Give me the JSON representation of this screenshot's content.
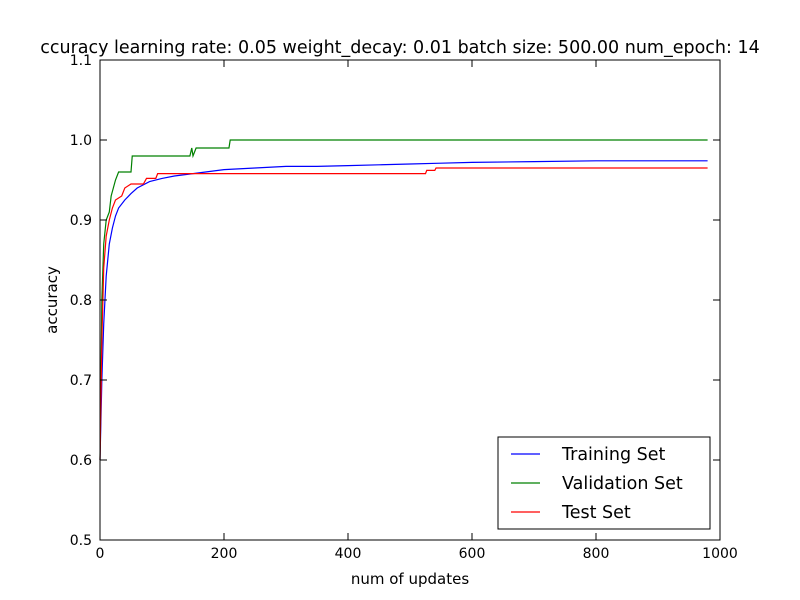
{
  "chart_data": {
    "type": "line",
    "title": "ccuracy learning rate: 0.05 weight_decay: 0.01 batch size: 500.00 num_epoch: 14",
    "xlabel": "num of updates",
    "ylabel": "accuracy",
    "xlim": [
      0,
      1000
    ],
    "ylim": [
      0.5,
      1.1
    ],
    "xticks": [
      "0",
      "200",
      "400",
      "600",
      "800",
      "1000"
    ],
    "xtick_values": [
      0,
      200,
      400,
      600,
      800,
      1000
    ],
    "yticks": [
      "0.5",
      "0.6",
      "0.7",
      "0.8",
      "0.9",
      "1.0",
      "1.1"
    ],
    "ytick_values": [
      0.5,
      0.6,
      0.7,
      0.8,
      0.9,
      1.0,
      1.1
    ],
    "grid": false,
    "legend_position": "bottom-right",
    "series": [
      {
        "name": "Training Set",
        "color": "#0000ff",
        "points": [
          [
            0,
            0.6
          ],
          [
            3,
            0.7
          ],
          [
            6,
            0.77
          ],
          [
            10,
            0.83
          ],
          [
            15,
            0.87
          ],
          [
            20,
            0.89
          ],
          [
            25,
            0.905
          ],
          [
            30,
            0.915
          ],
          [
            40,
            0.925
          ],
          [
            50,
            0.933
          ],
          [
            60,
            0.94
          ],
          [
            80,
            0.948
          ],
          [
            100,
            0.952
          ],
          [
            120,
            0.955
          ],
          [
            150,
            0.958
          ],
          [
            200,
            0.963
          ],
          [
            250,
            0.965
          ],
          [
            300,
            0.967
          ],
          [
            350,
            0.967
          ],
          [
            400,
            0.968
          ],
          [
            450,
            0.969
          ],
          [
            500,
            0.97
          ],
          [
            550,
            0.971
          ],
          [
            600,
            0.972
          ],
          [
            700,
            0.973
          ],
          [
            800,
            0.974
          ],
          [
            900,
            0.974
          ],
          [
            980,
            0.974
          ]
        ]
      },
      {
        "name": "Validation Set",
        "color": "#008000",
        "points": [
          [
            0,
            0.6
          ],
          [
            3,
            0.8
          ],
          [
            6,
            0.87
          ],
          [
            10,
            0.9
          ],
          [
            15,
            0.91
          ],
          [
            18,
            0.93
          ],
          [
            25,
            0.95
          ],
          [
            30,
            0.96
          ],
          [
            50,
            0.96
          ],
          [
            52,
            0.98
          ],
          [
            145,
            0.98
          ],
          [
            148,
            0.99
          ],
          [
            150,
            0.98
          ],
          [
            155,
            0.99
          ],
          [
            208,
            0.99
          ],
          [
            210,
            1.0
          ],
          [
            980,
            1.0
          ]
        ]
      },
      {
        "name": "Test Set",
        "color": "#ff0000",
        "points": [
          [
            0,
            0.6
          ],
          [
            3,
            0.75
          ],
          [
            6,
            0.84
          ],
          [
            10,
            0.88
          ],
          [
            15,
            0.9
          ],
          [
            20,
            0.915
          ],
          [
            25,
            0.925
          ],
          [
            35,
            0.93
          ],
          [
            40,
            0.94
          ],
          [
            50,
            0.945
          ],
          [
            70,
            0.945
          ],
          [
            75,
            0.952
          ],
          [
            90,
            0.952
          ],
          [
            93,
            0.958
          ],
          [
            525,
            0.958
          ],
          [
            527,
            0.962
          ],
          [
            540,
            0.962
          ],
          [
            542,
            0.965
          ],
          [
            980,
            0.965
          ]
        ]
      }
    ]
  }
}
